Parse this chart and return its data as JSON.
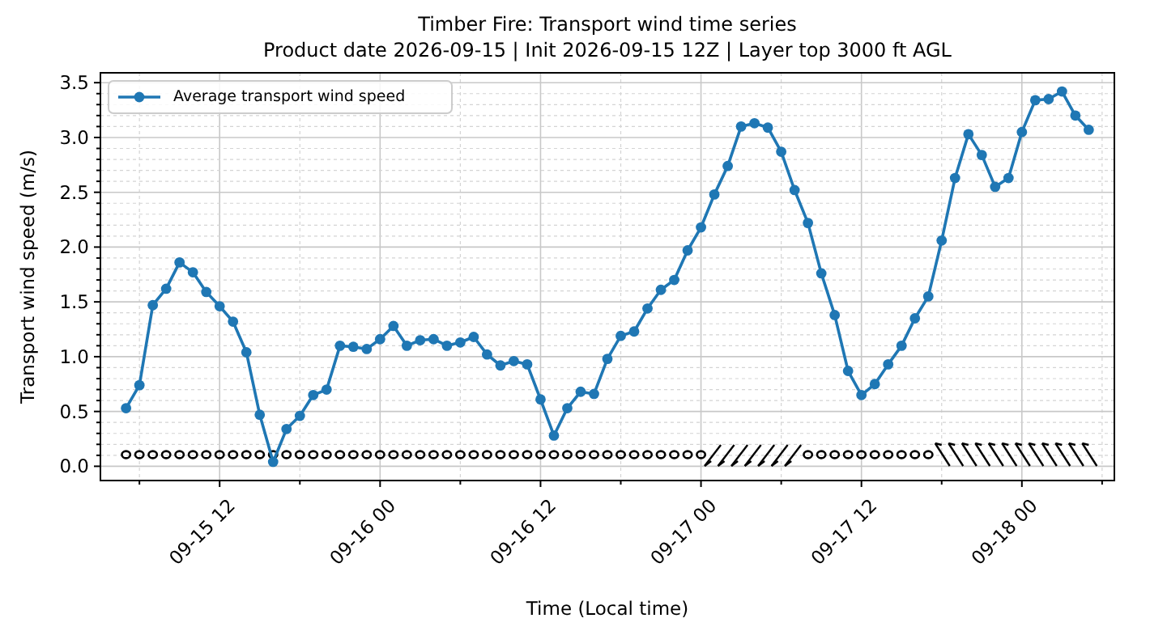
{
  "chart_data": {
    "type": "line",
    "title": "Timber Fire: Transport wind time series",
    "subtitle": "Product date 2026-09-15 | Init 2026-09-15 12Z | Layer top 3000 ft AGL",
    "xlabel": "Time (Local time)",
    "ylabel": "Transport wind speed (m/s)",
    "x": [
      "2026-09-15T05:00",
      "2026-09-15T06:00",
      "2026-09-15T07:00",
      "2026-09-15T08:00",
      "2026-09-15T09:00",
      "2026-09-15T10:00",
      "2026-09-15T11:00",
      "2026-09-15T12:00",
      "2026-09-15T13:00",
      "2026-09-15T14:00",
      "2026-09-15T15:00",
      "2026-09-15T16:00",
      "2026-09-15T17:00",
      "2026-09-15T18:00",
      "2026-09-15T19:00",
      "2026-09-15T20:00",
      "2026-09-15T21:00",
      "2026-09-15T22:00",
      "2026-09-15T23:00",
      "2026-09-16T00:00",
      "2026-09-16T01:00",
      "2026-09-16T02:00",
      "2026-09-16T03:00",
      "2026-09-16T04:00",
      "2026-09-16T05:00",
      "2026-09-16T06:00",
      "2026-09-16T07:00",
      "2026-09-16T08:00",
      "2026-09-16T09:00",
      "2026-09-16T10:00",
      "2026-09-16T11:00",
      "2026-09-16T12:00",
      "2026-09-16T13:00",
      "2026-09-16T14:00",
      "2026-09-16T15:00",
      "2026-09-16T16:00",
      "2026-09-16T17:00",
      "2026-09-16T18:00",
      "2026-09-16T19:00",
      "2026-09-16T20:00",
      "2026-09-16T21:00",
      "2026-09-16T22:00",
      "2026-09-16T23:00",
      "2026-09-17T00:00",
      "2026-09-17T01:00",
      "2026-09-17T02:00",
      "2026-09-17T03:00",
      "2026-09-17T04:00",
      "2026-09-17T05:00",
      "2026-09-17T06:00",
      "2026-09-17T07:00",
      "2026-09-17T08:00",
      "2026-09-17T09:00",
      "2026-09-17T10:00",
      "2026-09-17T11:00",
      "2026-09-17T12:00",
      "2026-09-17T13:00",
      "2026-09-17T14:00",
      "2026-09-17T15:00",
      "2026-09-17T16:00",
      "2026-09-17T17:00",
      "2026-09-17T18:00",
      "2026-09-17T19:00",
      "2026-09-17T20:00",
      "2026-09-17T21:00",
      "2026-09-17T22:00",
      "2026-09-17T23:00",
      "2026-09-18T00:00",
      "2026-09-18T01:00",
      "2026-09-18T02:00",
      "2026-09-18T03:00",
      "2026-09-18T04:00",
      "2026-09-18T05:00"
    ],
    "series": [
      {
        "name": "Average transport wind speed",
        "color": "#1f77b4",
        "values": [
          0.53,
          0.74,
          1.47,
          1.62,
          1.86,
          1.77,
          1.59,
          1.46,
          1.32,
          1.04,
          0.47,
          0.04,
          0.34,
          0.46,
          0.65,
          0.7,
          1.1,
          1.09,
          1.07,
          1.16,
          1.28,
          1.1,
          1.15,
          1.16,
          1.1,
          1.13,
          1.18,
          1.02,
          0.92,
          0.96,
          0.93,
          0.61,
          0.28,
          0.53,
          0.68,
          0.66,
          0.98,
          1.19,
          1.23,
          1.44,
          1.61,
          1.7,
          1.97,
          2.18,
          2.48,
          2.74,
          3.1,
          3.13,
          3.09,
          2.87,
          2.52,
          2.22,
          1.76,
          1.38,
          0.87,
          0.65,
          0.75,
          0.93,
          1.1,
          1.35,
          1.55,
          2.06,
          2.63,
          3.03,
          2.84,
          2.55,
          2.63,
          3.05,
          3.34,
          3.35,
          3.42,
          3.2,
          3.07
        ]
      }
    ],
    "xlim": [
      "2026-09-15T03:05",
      "2026-09-18T06:55"
    ],
    "xticks": [
      {
        "value": "2026-09-15T06:00",
        "label": null
      },
      {
        "value": "2026-09-15T12:00",
        "label": "09-15 12"
      },
      {
        "value": "2026-09-15T18:00",
        "label": null
      },
      {
        "value": "2026-09-16T00:00",
        "label": "09-16 00"
      },
      {
        "value": "2026-09-16T06:00",
        "label": null
      },
      {
        "value": "2026-09-16T12:00",
        "label": "09-16 12"
      },
      {
        "value": "2026-09-16T18:00",
        "label": null
      },
      {
        "value": "2026-09-17T00:00",
        "label": "09-17 00"
      },
      {
        "value": "2026-09-17T06:00",
        "label": null
      },
      {
        "value": "2026-09-17T12:00",
        "label": "09-17 12"
      },
      {
        "value": "2026-09-17T18:00",
        "label": null
      },
      {
        "value": "2026-09-18T00:00",
        "label": "09-18 00"
      },
      {
        "value": "2026-09-18T06:00",
        "label": null
      }
    ],
    "ylim": [
      -0.13,
      3.59
    ],
    "yticks": [
      {
        "value": 0,
        "label": "0.0"
      },
      {
        "value": 0.1,
        "label": null
      },
      {
        "value": 0.2,
        "label": null
      },
      {
        "value": 0.3,
        "label": null
      },
      {
        "value": 0.4,
        "label": null
      },
      {
        "value": 0.5,
        "label": "0.5"
      },
      {
        "value": 0.6,
        "label": null
      },
      {
        "value": 0.7,
        "label": null
      },
      {
        "value": 0.8,
        "label": null
      },
      {
        "value": 0.9,
        "label": null
      },
      {
        "value": 1,
        "label": "1.0"
      },
      {
        "value": 1.1,
        "label": null
      },
      {
        "value": 1.2,
        "label": null
      },
      {
        "value": 1.3,
        "label": null
      },
      {
        "value": 1.4,
        "label": null
      },
      {
        "value": 1.5,
        "label": "1.5"
      },
      {
        "value": 1.6,
        "label": null
      },
      {
        "value": 1.7,
        "label": null
      },
      {
        "value": 1.8,
        "label": null
      },
      {
        "value": 1.9,
        "label": null
      },
      {
        "value": 2,
        "label": "2.0"
      },
      {
        "value": 2.1,
        "label": null
      },
      {
        "value": 2.2,
        "label": null
      },
      {
        "value": 2.3,
        "label": null
      },
      {
        "value": 2.4,
        "label": null
      },
      {
        "value": 2.5,
        "label": "2.5"
      },
      {
        "value": 2.6,
        "label": null
      },
      {
        "value": 2.7,
        "label": null
      },
      {
        "value": 2.8,
        "label": null
      },
      {
        "value": 2.9,
        "label": null
      },
      {
        "value": 3,
        "label": "3.0"
      },
      {
        "value": 3.1,
        "label": null
      },
      {
        "value": 3.2,
        "label": null
      },
      {
        "value": 3.3,
        "label": null
      },
      {
        "value": 3.4,
        "label": null
      },
      {
        "value": 3.5,
        "label": "3.5"
      }
    ],
    "grid": true,
    "legend": "top left",
    "marker": "circle",
    "line_style": "solid"
  }
}
